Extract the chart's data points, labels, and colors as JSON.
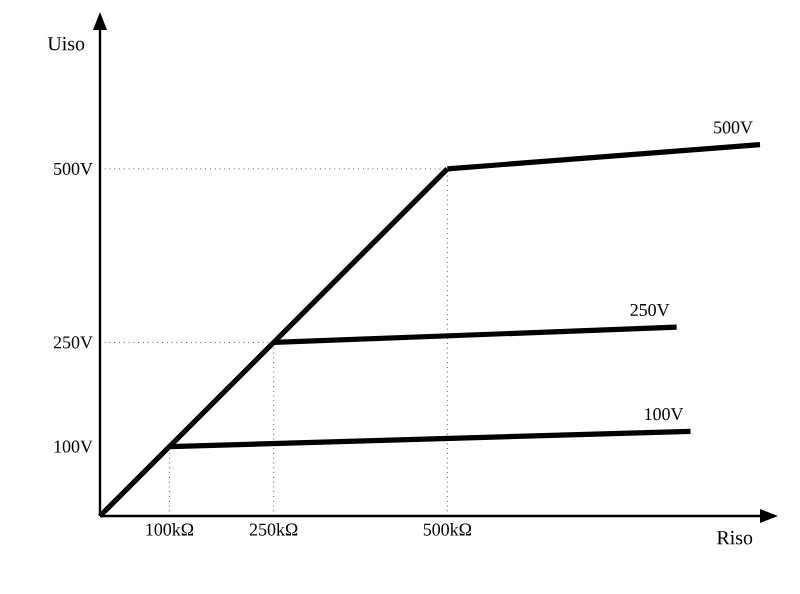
{
  "chart_data": {
    "type": "line",
    "xlabel": "Riso",
    "ylabel": "Uiso",
    "xlim": [
      0,
      950
    ],
    "ylim": [
      0,
      700
    ],
    "xticks": [
      {
        "value": 100,
        "label": "100kΩ"
      },
      {
        "value": 250,
        "label": "250kΩ"
      },
      {
        "value": 500,
        "label": "500kΩ"
      }
    ],
    "yticks": [
      {
        "value": 100,
        "label": "100V"
      },
      {
        "value": 250,
        "label": "250V"
      },
      {
        "value": 500,
        "label": "500V"
      }
    ],
    "series": [
      {
        "color": "#000000",
        "x": [
          0,
          500
        ],
        "values": [
          0,
          500
        ]
      },
      {
        "name": "500V",
        "color": "#000000",
        "x": [
          500,
          950
        ],
        "values": [
          500,
          535
        ]
      },
      {
        "name": "250V",
        "color": "#000000",
        "x": [
          250,
          830
        ],
        "values": [
          250,
          272
        ]
      },
      {
        "name": "100V",
        "color": "#000000",
        "x": [
          100,
          850
        ],
        "values": [
          100,
          122
        ]
      }
    ],
    "ref_lines": [
      {
        "axis": "x",
        "value": 100,
        "line_style": "dotted"
      },
      {
        "axis": "x",
        "value": 250,
        "line_style": "dotted"
      },
      {
        "axis": "x",
        "value": 500,
        "line_style": "dotted"
      },
      {
        "axis": "y",
        "value": 250,
        "line_style": "dotted"
      },
      {
        "axis": "y",
        "value": 500,
        "line_style": "dotted"
      }
    ],
    "grid": false,
    "marker": "none",
    "line_style": "solid"
  }
}
